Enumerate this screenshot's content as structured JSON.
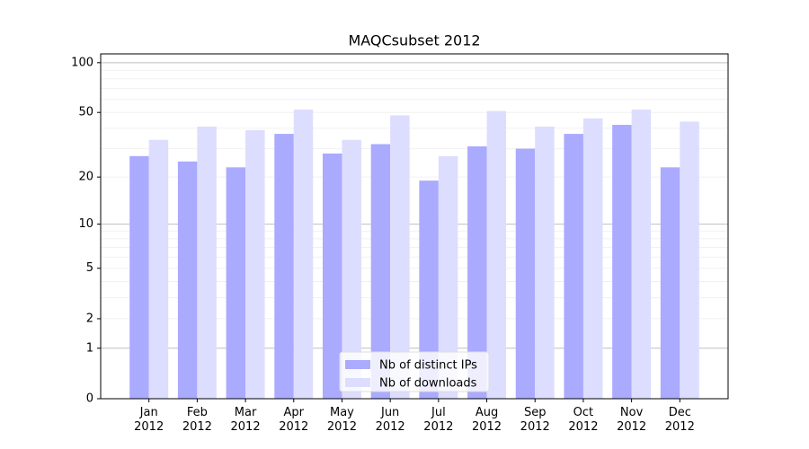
{
  "chart_data": {
    "type": "bar",
    "title": "MAQCsubset 2012",
    "categories": [
      "Jan\n2012",
      "Feb\n2012",
      "Mar\n2012",
      "Apr\n2012",
      "May\n2012",
      "Jun\n2012",
      "Jul\n2012",
      "Aug\n2012",
      "Sep\n2012",
      "Oct\n2012",
      "Nov\n2012",
      "Dec\n2012"
    ],
    "series": [
      {
        "name": "Nb of distinct IPs",
        "color": "#aaaaff",
        "values": [
          27,
          25,
          23,
          37,
          28,
          32,
          19,
          31,
          30,
          37,
          42,
          23
        ]
      },
      {
        "name": "Nb of downloads",
        "color": "#ddddff",
        "values": [
          34,
          41,
          39,
          52,
          34,
          48,
          27,
          51,
          41,
          46,
          52,
          44
        ]
      }
    ],
    "yscale": "log1p",
    "ylim": [
      0,
      113
    ],
    "yticks": [
      0,
      1,
      2,
      5,
      10,
      20,
      50,
      100
    ],
    "ymajorgrid": [
      1,
      10,
      100
    ],
    "yminorgrid": [
      2,
      3,
      4,
      5,
      6,
      7,
      8,
      9,
      20,
      30,
      40,
      50,
      60,
      70,
      80,
      90
    ],
    "legend": "lower center"
  }
}
